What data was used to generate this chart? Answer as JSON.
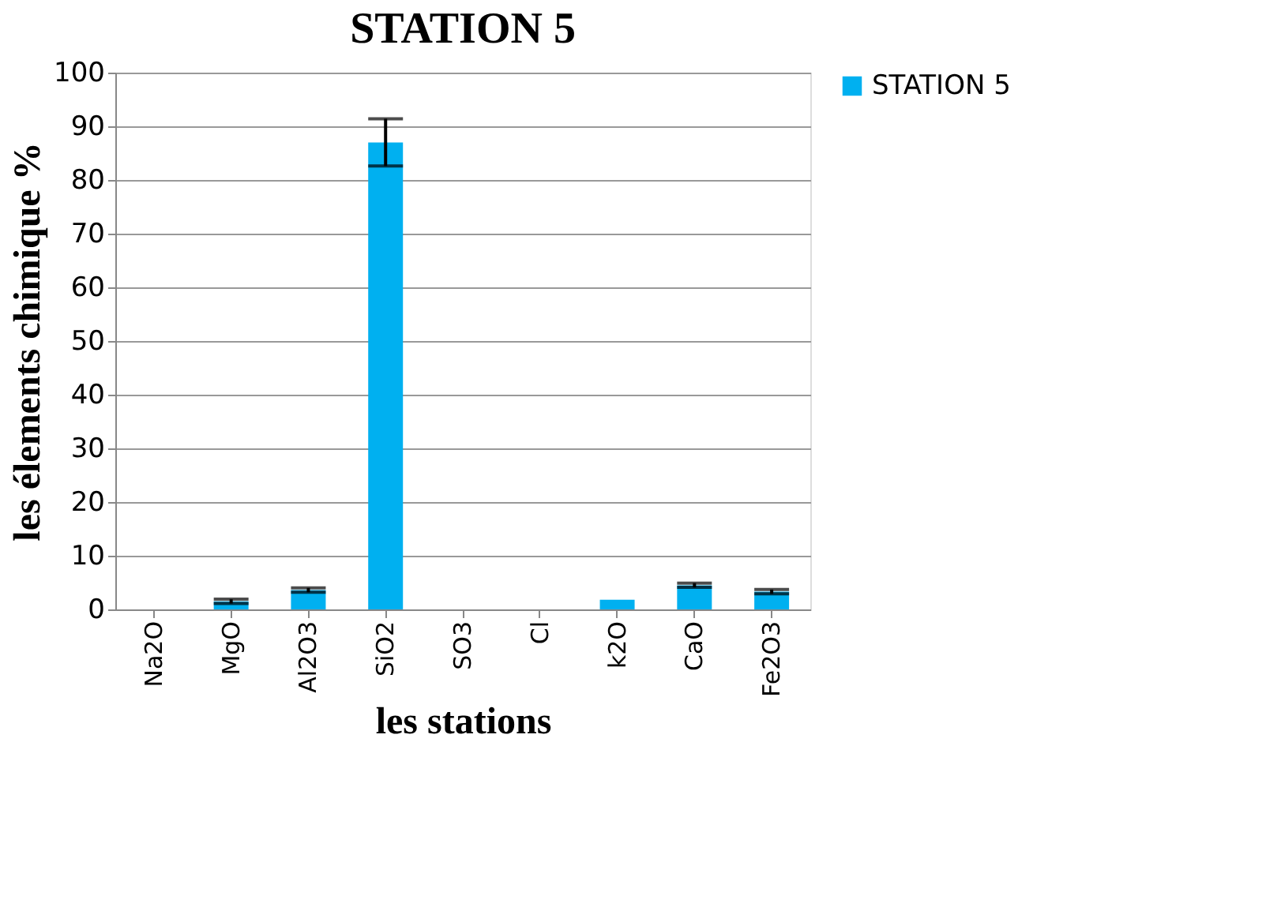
{
  "chart_data": {
    "type": "bar",
    "title": "STATION 5",
    "xlabel": "les stations",
    "ylabel": "les élements chimique %",
    "categories": [
      "Na2O",
      "MgO",
      "Al2O3",
      "SiO2",
      "SO3",
      "Cl",
      "k2O",
      "CaO",
      "Fe2O3"
    ],
    "series": [
      {
        "name": "STATION 5",
        "color": "#00b0f0",
        "values": [
          0,
          1.5,
          3.6,
          87,
          0,
          0,
          1.8,
          4.5,
          3.3
        ],
        "errors": [
          null,
          0.4,
          0.4,
          4.4,
          null,
          null,
          null,
          0.4,
          0.4
        ]
      }
    ],
    "ylim": [
      0,
      100
    ],
    "yticks": [
      0,
      10,
      20,
      30,
      40,
      50,
      60,
      70,
      80,
      90,
      100
    ],
    "grid": "y",
    "legend": "top right"
  }
}
